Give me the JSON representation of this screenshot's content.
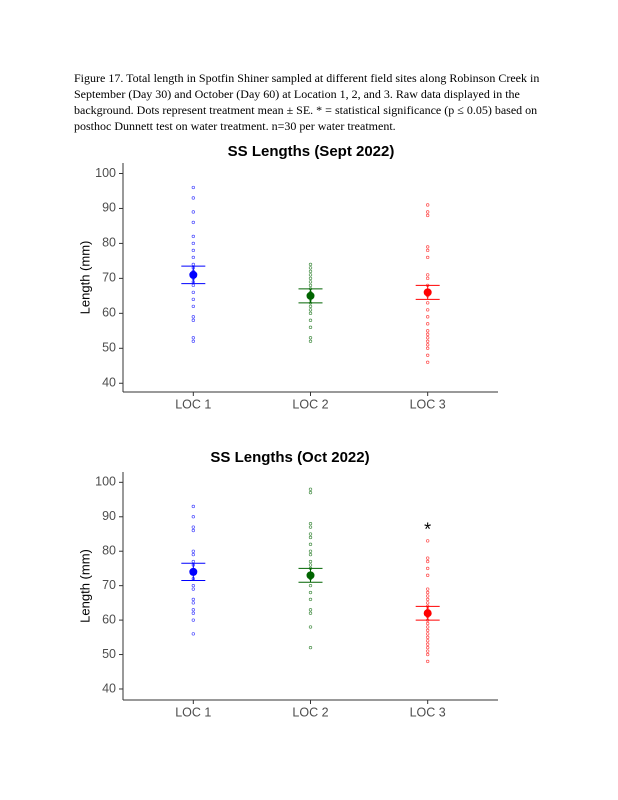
{
  "caption": [
    "Figure 17. Total length in Spotfin Shiner sampled at different field sites along Robinson Creek in",
    "September (Day 30) and October (Day 60) at Location 1, 2, and 3. Raw data displayed in the",
    "background. Dots represent treatment mean ± SE. * = statistical significance (p ≤ 0.05) based on",
    "posthoc Dunnett test on water treatment. n=30 per water treatment."
  ],
  "chart_data": [
    {
      "type": "dotplot",
      "title": "SS Lengths (Sept 2022)",
      "y_label": "Length (mm)",
      "categories": [
        "LOC 1",
        "LOC 2",
        "LOC 3"
      ],
      "groups": [
        {
          "color": "#0000ff",
          "points": [
            96,
            93,
            89,
            86,
            82,
            80,
            78,
            76,
            74,
            73,
            72,
            71,
            70,
            69,
            68,
            66,
            64,
            62,
            59,
            58,
            53,
            52
          ],
          "mean": 71,
          "se": 2.5
        },
        {
          "color": "#006400",
          "points": [
            74,
            73,
            72,
            71,
            70,
            69,
            68,
            67,
            66,
            65,
            64,
            63,
            62,
            61,
            60,
            58,
            56,
            53,
            52
          ],
          "mean": 65,
          "se": 2
        },
        {
          "color": "#ff0000",
          "points": [
            91,
            89,
            88,
            79,
            78,
            76,
            71,
            70,
            68,
            66,
            65,
            63,
            61,
            59,
            57,
            55,
            54,
            53,
            52,
            51,
            50,
            48,
            46
          ],
          "mean": 66,
          "se": 2
        }
      ],
      "ylim": [
        37.5,
        103
      ],
      "yticks": [
        40,
        50,
        60,
        70,
        80,
        90,
        100
      ]
    },
    {
      "type": "dotplot",
      "title": "SS Lengths (Oct 2022)",
      "y_label": "Length (mm)",
      "categories": [
        "LOC 1",
        "LOC 2",
        "LOC 3"
      ],
      "groups": [
        {
          "color": "#0000ff",
          "points": [
            93,
            90,
            87,
            86,
            80,
            79,
            77,
            76,
            74,
            72,
            70,
            69,
            66,
            65,
            63,
            62,
            60,
            56
          ],
          "mean": 74,
          "se": 2.5
        },
        {
          "color": "#006400",
          "points": [
            98,
            97,
            88,
            87,
            85,
            84,
            82,
            80,
            79,
            77,
            76,
            75,
            72,
            70,
            68,
            66,
            63,
            62,
            58,
            52
          ],
          "mean": 73,
          "se": 2
        },
        {
          "color": "#ff0000",
          "points": [
            83,
            78,
            77,
            75,
            73,
            69,
            68,
            67,
            66,
            65,
            64,
            63,
            62,
            61,
            60,
            59,
            58,
            57,
            56,
            55,
            54,
            53,
            52,
            51,
            50,
            48
          ],
          "mean": 62,
          "se": 2
        }
      ],
      "annotation": {
        "text": "*",
        "category": "LOC 3",
        "y": 86
      },
      "ylim": [
        36.8,
        103
      ],
      "yticks": [
        40,
        50,
        60,
        70,
        80,
        90,
        100
      ]
    }
  ]
}
